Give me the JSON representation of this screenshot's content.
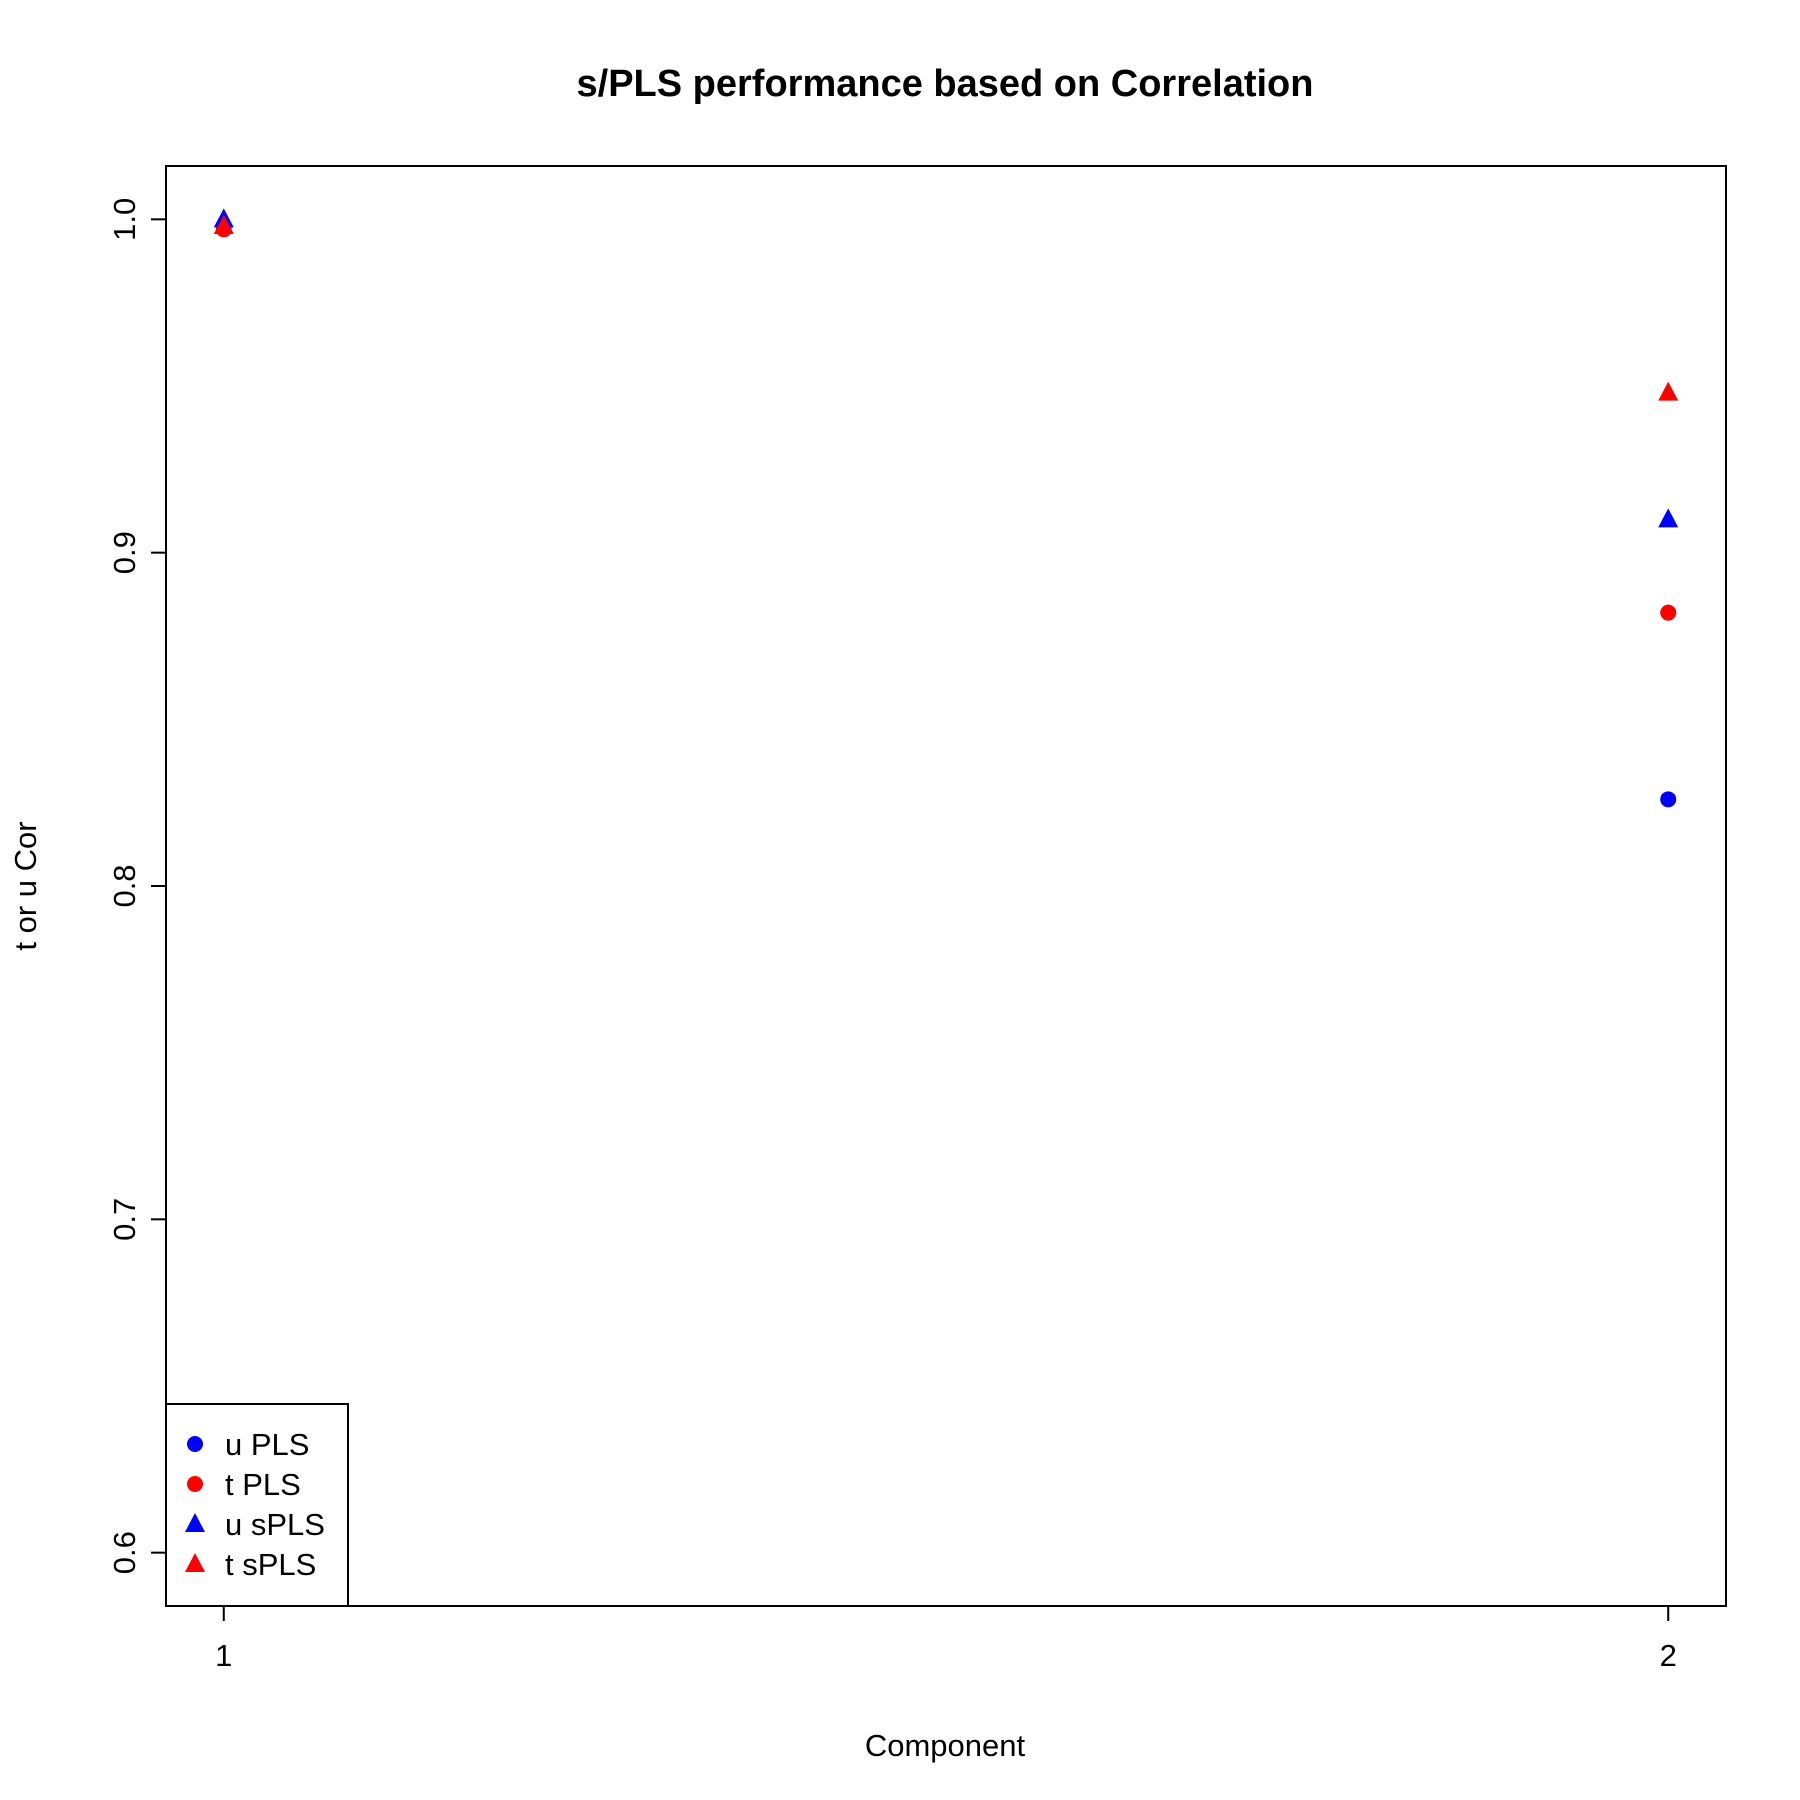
{
  "chart_data": {
    "type": "scatter",
    "title": "s/PLS performance based on Correlation",
    "xlabel": "Component",
    "ylabel": "t or u Cor",
    "x": [
      1,
      2
    ],
    "x_ticks": [
      "1",
      "2"
    ],
    "y_ticks": [
      "0.6",
      "0.7",
      "0.8",
      "0.9",
      "1.0"
    ],
    "xlim": [
      0.96,
      2.04
    ],
    "ylim": [
      0.584,
      1.016
    ],
    "grid": false,
    "legend_position": "bottom-left",
    "series": [
      {
        "name": "u PLS",
        "values": [
          0.998,
          0.826
        ],
        "color": "#0000ff",
        "marker": "circle"
      },
      {
        "name": "t PLS",
        "values": [
          0.997,
          0.882
        ],
        "color": "#ff0000",
        "marker": "circle"
      },
      {
        "name": "u sPLS",
        "values": [
          1.0,
          0.91
        ],
        "color": "#0000ff",
        "marker": "triangle"
      },
      {
        "name": "t sPLS",
        "values": [
          0.998,
          0.948
        ],
        "color": "#ff0000",
        "marker": "triangle"
      }
    ]
  }
}
